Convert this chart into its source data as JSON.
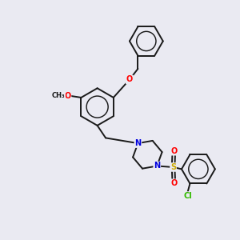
{
  "bg_color": "#eaeaf2",
  "bond_color": "#1a1a1a",
  "bond_width": 1.4,
  "fig_size": [
    3.0,
    3.0
  ],
  "dpi": 100,
  "atom_colors": {
    "O": "#ff0000",
    "N": "#0000dd",
    "S": "#ccaa00",
    "Cl": "#33bb00",
    "C": "#1a1a1a"
  },
  "xlim": [
    0,
    10
  ],
  "ylim": [
    0,
    10
  ]
}
